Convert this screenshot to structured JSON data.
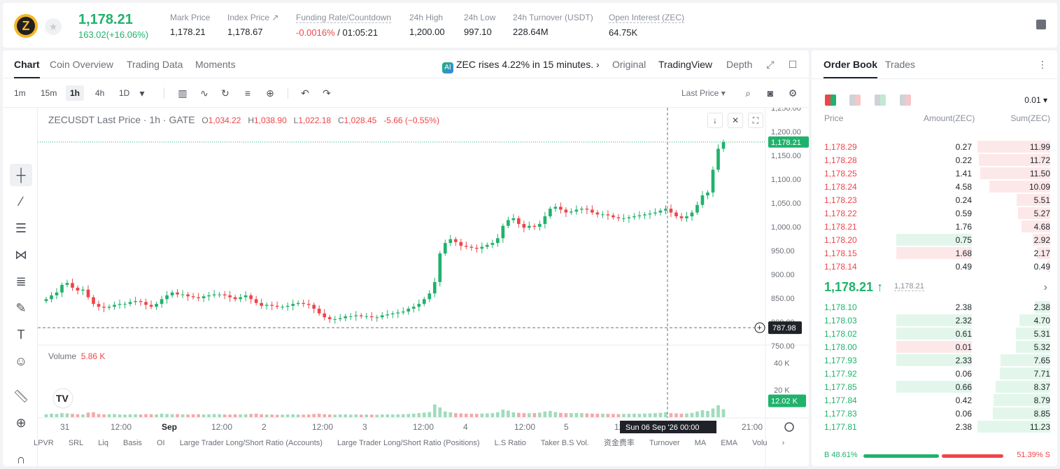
{
  "ticker": {
    "symbol": "ZEC",
    "logo_letter": "Z",
    "last_price": "1,178.21",
    "change": "163.02(+16.06%)",
    "stats": [
      {
        "label": "Mark Price",
        "value": "1,178.21",
        "dotted": false
      },
      {
        "label": "Index Price ↗",
        "value": "1,178.67",
        "dotted": false
      },
      {
        "label": "Funding Rate/Countdown",
        "value_red": "-0.0016%",
        "value": " / 01:05:21",
        "dotted": true
      },
      {
        "label": "24h High",
        "value": "1,200.00",
        "dotted": false
      },
      {
        "label": "24h Low",
        "value": "997.10",
        "dotted": false
      },
      {
        "label": "24h Turnover (USDT)",
        "value": "228.64M",
        "dotted": false
      },
      {
        "label": "Open Interest (ZEC)",
        "value": "64.75K",
        "dotted": false
      }
    ],
    "colors": {
      "up": "#20b26c",
      "down": "#ef454a",
      "coin": "#f4b728"
    }
  },
  "chart_tabs": [
    "Chart",
    "Coin Overview",
    "Trading Data",
    "Moments"
  ],
  "news": {
    "badge": "AI",
    "text": "ZEC rises 4.22% in 15 minutes.",
    "arrow": "›"
  },
  "view_tabs": [
    "Original",
    "TradingView",
    "Depth"
  ],
  "toolbar": {
    "timeframes": [
      "1m",
      "15m",
      "1h",
      "4h",
      "1D"
    ],
    "active_timeframe": "1h",
    "price_source": "Last Price"
  },
  "legend": {
    "symbol": "ZECUSDT Last Price · 1h · GATE",
    "o_label": "O",
    "o": "1,034.22",
    "h_label": "H",
    "h": "1,038.90",
    "l_label": "L",
    "l": "1,022.18",
    "c_label": "C",
    "c": "1,028.45",
    "chg": "-5.66 (−0.55%)",
    "volume_label": "Volume",
    "volume_value": "5.86 K"
  },
  "chart_data": {
    "type": "candlestick",
    "price_axis_ticks": [
      "1,250.00",
      "1,200.00",
      "1,150.00",
      "1,100.00",
      "1,050.00",
      "1,000.00",
      "950.00",
      "900.00",
      "850.00",
      "800.00",
      "750.00"
    ],
    "price_ylim": [
      750,
      1250
    ],
    "volume_axis_ticks": [
      "40 K",
      "20 K"
    ],
    "volume_ylim": [
      0,
      50000
    ],
    "time_ticks": [
      "31",
      "12:00",
      "Sep",
      "12:00",
      "2",
      "12:00",
      "3",
      "12:00",
      "4",
      "12:00",
      "5",
      "12:",
      "00",
      "21:00"
    ],
    "last_price_tag": "1,178.21",
    "crosshair_price_tag": "787.98",
    "crosshair_time_tag": "Sun 06 Sep '26   00:00",
    "volume_tag": "12.02 K",
    "closes": [
      848,
      856,
      862,
      878,
      882,
      872,
      866,
      868,
      852,
      838,
      832,
      830,
      832,
      836,
      838,
      838,
      842,
      844,
      842,
      836,
      832,
      838,
      848,
      856,
      862,
      858,
      858,
      854,
      852,
      850,
      854,
      856,
      858,
      858,
      856,
      852,
      848,
      852,
      856,
      848,
      840,
      834,
      836,
      834,
      832,
      832,
      834,
      838,
      840,
      838,
      836,
      828,
      818,
      810,
      806,
      806,
      808,
      812,
      812,
      814,
      812,
      812,
      810,
      810,
      814,
      816,
      818,
      820,
      822,
      828,
      832,
      838,
      848,
      860,
      884,
      944,
      966,
      974,
      968,
      960,
      958,
      956,
      954,
      958,
      962,
      966,
      976,
      1002,
      1014,
      1018,
      1006,
      998,
      1002,
      1000,
      1006,
      1022,
      1038,
      1042,
      1036,
      1030,
      1032,
      1036,
      1038,
      1036,
      1030,
      1026,
      1026,
      1024,
      1020,
      1018,
      1018,
      1020,
      1022,
      1024,
      1026,
      1028,
      1030,
      1034,
      1038,
      1030,
      1022,
      1018,
      1022,
      1030,
      1046,
      1066,
      1072,
      1120,
      1164,
      1178
    ],
    "volumes": [
      2.2,
      2.6,
      2.4,
      3.0,
      2.8,
      2.5,
      2.2,
      2.0,
      3.4,
      3.6,
      2.4,
      2.1,
      2.2,
      2.3,
      2.0,
      1.9,
      2.1,
      2.2,
      2.0,
      2.3,
      2.2,
      2.1,
      2.6,
      2.4,
      2.2,
      2.3,
      2.1,
      2.0,
      2.1,
      2.2,
      2.0,
      2.1,
      2.3,
      2.2,
      2.0,
      1.9,
      2.1,
      2.0,
      2.2,
      2.4,
      2.6,
      2.2,
      2.0,
      1.9,
      1.8,
      1.9,
      2.0,
      2.1,
      2.0,
      1.9,
      2.0,
      2.4,
      2.6,
      2.2,
      2.0,
      1.9,
      2.0,
      2.1,
      1.9,
      2.0,
      1.9,
      2.0,
      1.9,
      1.8,
      2.0,
      2.1,
      2.0,
      2.1,
      2.2,
      2.4,
      2.6,
      3.0,
      3.4,
      3.8,
      9.4,
      7.2,
      4.2,
      3.6,
      3.0,
      2.8,
      2.6,
      2.6,
      2.5,
      2.7,
      2.8,
      3.0,
      3.6,
      5.6,
      4.8,
      3.6,
      3.2,
      3.0,
      2.9,
      3.1,
      3.4,
      4.2,
      4.6,
      3.8,
      3.2,
      3.0,
      3.0,
      3.1,
      3.0,
      2.8,
      2.7,
      2.6,
      2.6,
      2.5,
      2.4,
      2.3,
      2.4,
      2.5,
      2.6,
      2.5,
      2.7,
      2.8,
      3.0,
      3.2,
      3.6,
      3.0,
      2.8,
      2.6,
      2.8,
      3.2,
      4.2,
      5.2,
      4.6,
      6.4,
      8.8,
      5.9
    ],
    "indicators": [
      "LPVR",
      "SRL",
      "Liq",
      "Basis",
      "OI",
      "Large Trader Long/Short Ratio (Accounts)",
      "Large Trader Long/Short Ratio (Positions)",
      "L.S Ratio",
      "Taker B.S Vol.",
      "资金费率",
      "Turnover",
      "MA",
      "EMA",
      "Volu"
    ]
  },
  "orderbook": {
    "tabs": [
      "Order Book",
      "Trades"
    ],
    "precision": "0.01 ▾",
    "headers": {
      "price": "Price",
      "amount": "Amount(ZEC)",
      "sum": "Sum(ZEC)"
    },
    "asks": [
      {
        "price": "1,178.29",
        "amount": "0.27",
        "sum": "11.99",
        "depth": 1.0,
        "amt_frac": 0
      },
      {
        "price": "1,178.28",
        "amount": "0.22",
        "sum": "11.72",
        "depth": 0.98,
        "amt_frac": 0
      },
      {
        "price": "1,178.25",
        "amount": "1.41",
        "sum": "11.50",
        "depth": 0.96,
        "amt_frac": 0
      },
      {
        "price": "1,178.24",
        "amount": "4.58",
        "sum": "10.09",
        "depth": 0.84,
        "amt_frac": 0
      },
      {
        "price": "1,178.23",
        "amount": "0.24",
        "sum": "5.51",
        "depth": 0.46,
        "amt_frac": 0
      },
      {
        "price": "1,178.22",
        "amount": "0.59",
        "sum": "5.27",
        "depth": 0.44,
        "amt_frac": 0
      },
      {
        "price": "1,178.21",
        "amount": "1.76",
        "sum": "4.68",
        "depth": 0.39,
        "amt_frac": 0
      },
      {
        "price": "1,178.20",
        "amount": "0.75",
        "sum": "2.92",
        "depth": 0.24,
        "amt_frac": 0.57,
        "amt_color": "green"
      },
      {
        "price": "1,178.15",
        "amount": "1.68",
        "sum": "2.17",
        "depth": 0.18,
        "amt_frac": 0.57,
        "amt_color": "red"
      },
      {
        "price": "1,178.14",
        "amount": "0.49",
        "sum": "0.49",
        "depth": 0.04,
        "amt_frac": 0
      }
    ],
    "mid_price": "1,178.21",
    "mid_arrow": "↑",
    "mid_mark": "1,178.21",
    "bids": [
      {
        "price": "1,178.10",
        "amount": "2.38",
        "sum": "2.38",
        "depth": 0.21,
        "amt_frac": 0
      },
      {
        "price": "1,178.03",
        "amount": "2.32",
        "sum": "4.70",
        "depth": 0.42,
        "amt_frac": 0.57,
        "amt_color": "green"
      },
      {
        "price": "1,178.02",
        "amount": "0.61",
        "sum": "5.31",
        "depth": 0.47,
        "amt_frac": 0.57,
        "amt_color": "green"
      },
      {
        "price": "1,178.00",
        "amount": "0.01",
        "sum": "5.32",
        "depth": 0.47,
        "amt_frac": 0.57,
        "amt_color": "red"
      },
      {
        "price": "1,177.93",
        "amount": "2.33",
        "sum": "7.65",
        "depth": 0.68,
        "amt_frac": 0.57,
        "amt_color": "green"
      },
      {
        "price": "1,177.92",
        "amount": "0.06",
        "sum": "7.71",
        "depth": 0.69,
        "amt_frac": 0
      },
      {
        "price": "1,177.85",
        "amount": "0.66",
        "sum": "8.37",
        "depth": 0.75,
        "amt_frac": 0.57,
        "amt_color": "green"
      },
      {
        "price": "1,177.84",
        "amount": "0.42",
        "sum": "8.79",
        "depth": 0.78,
        "amt_frac": 0
      },
      {
        "price": "1,177.83",
        "amount": "0.06",
        "sum": "8.85",
        "depth": 0.79,
        "amt_frac": 0
      },
      {
        "price": "1,177.81",
        "amount": "2.38",
        "sum": "11.23",
        "depth": 1.0,
        "amt_frac": 0
      }
    ],
    "buy_ratio": "B 48.61%",
    "sell_ratio": "51.39% S"
  }
}
